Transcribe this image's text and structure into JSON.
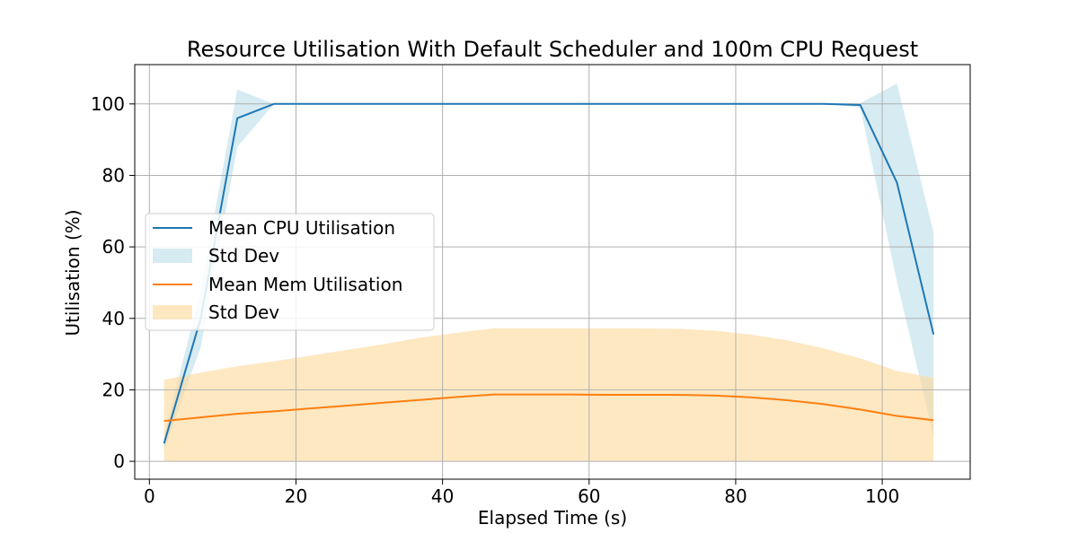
{
  "chart_data": {
    "type": "line",
    "title": "Resource Utilisation With Default Scheduler and 100m CPU Request",
    "xlabel": "Elapsed Time (s)",
    "ylabel": "Utilisation (%)",
    "xlim": [
      -2,
      112
    ],
    "ylim": [
      -5,
      111
    ],
    "xticks": [
      0,
      20,
      40,
      60,
      80,
      100
    ],
    "yticks": [
      0,
      20,
      40,
      60,
      80,
      100
    ],
    "grid": true,
    "legend_position": "center-left",
    "series": [
      {
        "name": "Mean CPU Utilisation",
        "band_name": "Std Dev",
        "color": "#1f77b4",
        "band_color": "#add8e6",
        "x": [
          2,
          7,
          12,
          17,
          22,
          27,
          32,
          37,
          42,
          47,
          52,
          57,
          62,
          67,
          72,
          77,
          82,
          87,
          92,
          97,
          102,
          107
        ],
        "y": [
          5,
          40,
          96,
          100,
          100,
          100,
          100,
          100,
          100,
          100,
          100,
          100,
          100,
          100,
          100,
          100,
          100,
          100,
          100,
          99.7,
          78,
          35.5
        ],
        "upper": [
          7,
          48,
          104,
          100,
          100,
          100,
          100,
          100,
          100,
          100,
          100,
          100,
          100,
          100,
          100,
          100,
          100,
          100,
          100,
          100.2,
          105.7,
          64
        ],
        "lower": [
          3,
          32,
          88,
          100,
          100,
          100,
          100,
          100,
          100,
          100,
          100,
          100,
          100,
          100,
          100,
          100,
          100,
          100,
          100,
          99,
          50.3,
          7
        ]
      },
      {
        "name": "Mean Mem Utilisation",
        "band_name": "Std Dev",
        "color": "#ff7f0e",
        "band_color": "#fdd89a",
        "x": [
          2,
          7,
          12,
          17,
          22,
          27,
          32,
          37,
          42,
          47,
          52,
          57,
          62,
          67,
          72,
          77,
          82,
          87,
          92,
          97,
          102,
          107
        ],
        "y": [
          11.3,
          12.3,
          13.3,
          14.0,
          14.8,
          15.6,
          16.4,
          17.2,
          18.0,
          18.7,
          18.7,
          18.7,
          18.6,
          18.6,
          18.6,
          18.4,
          17.9,
          17.1,
          16.0,
          14.5,
          12.7,
          11.5
        ],
        "upper": [
          22.8,
          24.8,
          26.6,
          28.0,
          29.6,
          31.2,
          32.8,
          34.6,
          36.0,
          37.2,
          37.2,
          37.2,
          37.2,
          37.2,
          37.1,
          36.6,
          35.5,
          33.9,
          31.6,
          28.8,
          25.3,
          23.3
        ],
        "lower": [
          0,
          0,
          0,
          0,
          0,
          0,
          0,
          0,
          0,
          0,
          0,
          0,
          0,
          0,
          0,
          0,
          0,
          0,
          0,
          0,
          0,
          0
        ]
      }
    ]
  }
}
